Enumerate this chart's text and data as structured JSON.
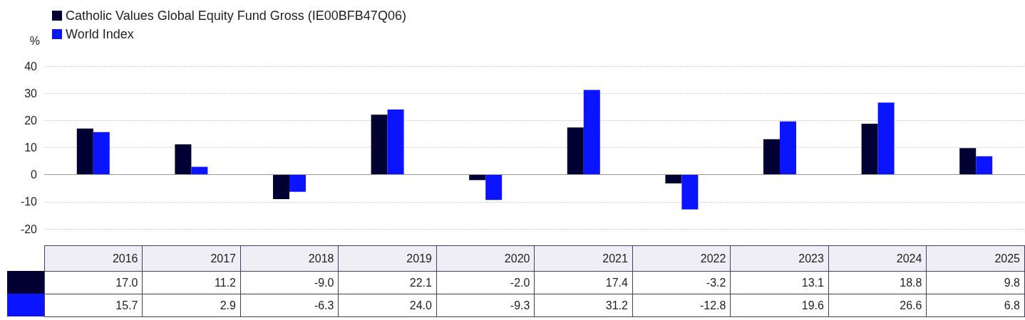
{
  "chart_data": {
    "type": "bar",
    "ylabel": "%",
    "categories": [
      "2016",
      "2017",
      "2018",
      "2019",
      "2020",
      "2021",
      "2022",
      "2023",
      "2024",
      "2025"
    ],
    "series": [
      {
        "name": "Catholic Values Global Equity Fund Gross (IE00BFB47Q06)",
        "color": "#000033",
        "values": [
          17.0,
          11.2,
          -9.0,
          22.1,
          -2.0,
          17.4,
          -3.2,
          13.1,
          18.8,
          9.8
        ],
        "value_labels": [
          "17.0",
          "11.2",
          "-9.0",
          "22.1",
          "-2.0",
          "17.4",
          "-3.2",
          "13.1",
          "18.8",
          "9.8"
        ]
      },
      {
        "name": "World Index",
        "color": "#0a14ff",
        "values": [
          15.7,
          2.9,
          -6.3,
          24.0,
          -9.3,
          31.2,
          -12.8,
          19.6,
          26.6,
          6.8
        ],
        "value_labels": [
          "15.7",
          "2.9",
          "-6.3",
          "24.0",
          "-9.3",
          "31.2",
          "-12.8",
          "19.6",
          "26.6",
          "6.8"
        ]
      }
    ],
    "ylim": [
      -20,
      40
    ],
    "yticks": [
      -20,
      -10,
      0,
      10,
      20,
      30,
      40
    ],
    "grid": "y",
    "legend": "top left"
  }
}
